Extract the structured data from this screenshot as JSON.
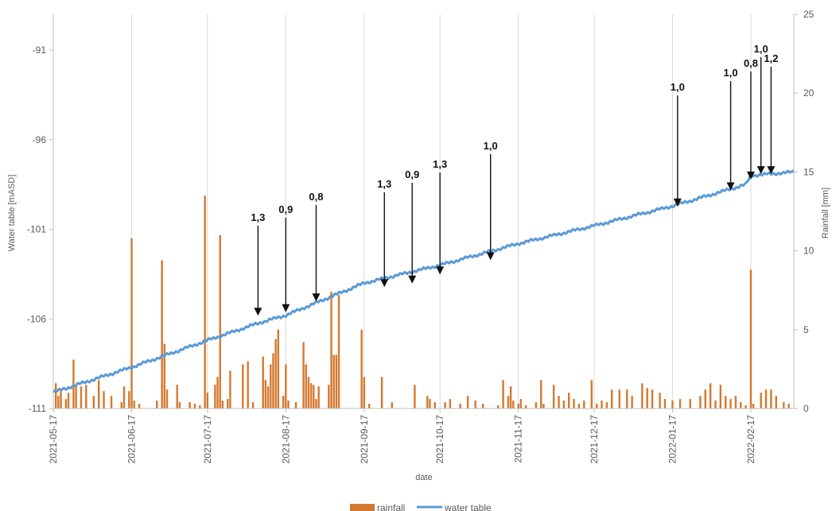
{
  "chart_data": {
    "type": "bar+line",
    "title": "",
    "xlabel": "date",
    "ylabel_left": "Water table [mASD]",
    "ylabel_right": "Rainfall [mm]",
    "x_start": "2021-05-17",
    "x_end": "2022-03-06",
    "x_ticks": [
      "2021-05-17",
      "2021-06-17",
      "2021-07-17",
      "2021-08-17",
      "2021-09-17",
      "2021-10-17",
      "2021-11-17",
      "2021-12-17",
      "2022-01-17",
      "2022-02-17"
    ],
    "ylim_left": [
      -111,
      -89
    ],
    "yticks_left": [
      -91,
      -96,
      -101,
      -106,
      -111
    ],
    "ylim_right": [
      0,
      25
    ],
    "yticks_right": [
      25,
      20,
      15,
      10,
      5,
      0
    ],
    "grid": "vertical",
    "legend_position": "bottom-center",
    "series": [
      {
        "name": "rainfall",
        "type": "bar",
        "axis": "right",
        "color": "#d4782f",
        "points": [
          [
            "2021-05-18",
            1.6
          ],
          [
            "2021-05-19",
            0.8
          ],
          [
            "2021-05-20",
            1.2
          ],
          [
            "2021-05-22",
            0.6
          ],
          [
            "2021-05-23",
            1.0
          ],
          [
            "2021-05-25",
            3.1
          ],
          [
            "2021-05-26",
            1.5
          ],
          [
            "2021-05-28",
            1.4
          ],
          [
            "2021-05-30",
            1.5
          ],
          [
            "2021-06-02",
            0.8
          ],
          [
            "2021-06-04",
            1.8
          ],
          [
            "2021-06-06",
            1.1
          ],
          [
            "2021-06-09",
            0.8
          ],
          [
            "2021-06-13",
            0.4
          ],
          [
            "2021-06-14",
            1.4
          ],
          [
            "2021-06-16",
            1.1
          ],
          [
            "2021-06-17",
            10.8
          ],
          [
            "2021-06-18",
            0.5
          ],
          [
            "2021-06-20",
            0.3
          ],
          [
            "2021-06-27",
            0.5
          ],
          [
            "2021-06-29",
            9.4
          ],
          [
            "2021-06-30",
            4.1
          ],
          [
            "2021-07-01",
            1.2
          ],
          [
            "2021-07-05",
            1.5
          ],
          [
            "2021-07-06",
            0.4
          ],
          [
            "2021-07-10",
            0.4
          ],
          [
            "2021-07-12",
            0.3
          ],
          [
            "2021-07-14",
            0.2
          ],
          [
            "2021-07-16",
            13.5
          ],
          [
            "2021-07-17",
            1.0
          ],
          [
            "2021-07-20",
            1.5
          ],
          [
            "2021-07-21",
            2.0
          ],
          [
            "2021-07-22",
            11.0
          ],
          [
            "2021-07-23",
            0.5
          ],
          [
            "2021-07-25",
            0.6
          ],
          [
            "2021-07-26",
            2.4
          ],
          [
            "2021-07-31",
            2.8
          ],
          [
            "2021-08-02",
            3.0
          ],
          [
            "2021-08-04",
            0.4
          ],
          [
            "2021-08-08",
            3.3
          ],
          [
            "2021-08-09",
            1.8
          ],
          [
            "2021-08-10",
            1.4
          ],
          [
            "2021-08-11",
            2.8
          ],
          [
            "2021-08-12",
            3.5
          ],
          [
            "2021-08-13",
            4.4
          ],
          [
            "2021-08-14",
            5.0
          ],
          [
            "2021-08-16",
            0.8
          ],
          [
            "2021-08-17",
            2.8
          ],
          [
            "2021-08-18",
            0.5
          ],
          [
            "2021-08-21",
            0.4
          ],
          [
            "2021-08-24",
            4.2
          ],
          [
            "2021-08-25",
            2.8
          ],
          [
            "2021-08-26",
            2.0
          ],
          [
            "2021-08-27",
            1.6
          ],
          [
            "2021-08-28",
            1.5
          ],
          [
            "2021-08-29",
            0.6
          ],
          [
            "2021-08-30",
            1.4
          ],
          [
            "2021-09-03",
            1.5
          ],
          [
            "2021-09-04",
            7.4
          ],
          [
            "2021-09-05",
            3.4
          ],
          [
            "2021-09-06",
            3.4
          ],
          [
            "2021-09-07",
            7.2
          ],
          [
            "2021-09-16",
            5.0
          ],
          [
            "2021-09-17",
            2.0
          ],
          [
            "2021-09-19",
            0.3
          ],
          [
            "2021-09-24",
            2.0
          ],
          [
            "2021-09-28",
            0.4
          ],
          [
            "2021-10-07",
            1.5
          ],
          [
            "2021-10-12",
            0.8
          ],
          [
            "2021-10-13",
            0.6
          ],
          [
            "2021-10-15",
            0.4
          ],
          [
            "2021-10-19",
            0.4
          ],
          [
            "2021-10-21",
            0.6
          ],
          [
            "2021-10-25",
            0.3
          ],
          [
            "2021-10-28",
            0.8
          ],
          [
            "2021-10-31",
            0.5
          ],
          [
            "2021-11-03",
            0.3
          ],
          [
            "2021-11-09",
            0.2
          ],
          [
            "2021-11-11",
            1.8
          ],
          [
            "2021-11-13",
            0.8
          ],
          [
            "2021-11-14",
            1.4
          ],
          [
            "2021-11-15",
            0.5
          ],
          [
            "2021-11-17",
            0.3
          ],
          [
            "2021-11-18",
            0.6
          ],
          [
            "2021-11-20",
            0.2
          ],
          [
            "2021-11-24",
            0.4
          ],
          [
            "2021-11-26",
            1.8
          ],
          [
            "2021-11-27",
            0.3
          ],
          [
            "2021-12-01",
            1.5
          ],
          [
            "2021-12-03",
            0.8
          ],
          [
            "2021-12-05",
            0.5
          ],
          [
            "2021-12-07",
            1.0
          ],
          [
            "2021-12-09",
            0.6
          ],
          [
            "2021-12-11",
            0.3
          ],
          [
            "2021-12-13",
            0.5
          ],
          [
            "2021-12-16",
            1.8
          ],
          [
            "2021-12-18",
            0.3
          ],
          [
            "2021-12-20",
            0.5
          ],
          [
            "2021-12-22",
            0.4
          ],
          [
            "2021-12-24",
            1.2
          ],
          [
            "2021-12-27",
            1.2
          ],
          [
            "2021-12-30",
            1.2
          ],
          [
            "2022-01-01",
            0.8
          ],
          [
            "2022-01-05",
            1.6
          ],
          [
            "2022-01-07",
            1.3
          ],
          [
            "2022-01-09",
            1.2
          ],
          [
            "2022-01-12",
            1.0
          ],
          [
            "2022-01-14",
            0.6
          ],
          [
            "2022-01-17",
            0.5
          ],
          [
            "2022-01-20",
            0.6
          ],
          [
            "2022-01-24",
            0.6
          ],
          [
            "2022-01-28",
            0.8
          ],
          [
            "2022-01-30",
            1.2
          ],
          [
            "2022-02-01",
            1.6
          ],
          [
            "2022-02-03",
            0.5
          ],
          [
            "2022-02-05",
            1.5
          ],
          [
            "2022-02-07",
            0.8
          ],
          [
            "2022-02-09",
            0.6
          ],
          [
            "2022-02-11",
            0.8
          ],
          [
            "2022-02-13",
            0.4
          ],
          [
            "2022-02-15",
            0.2
          ],
          [
            "2022-02-17",
            8.8
          ],
          [
            "2022-02-18",
            0.3
          ],
          [
            "2022-02-21",
            1.0
          ],
          [
            "2022-02-23",
            1.2
          ],
          [
            "2022-02-25",
            1.2
          ],
          [
            "2022-02-27",
            0.8
          ],
          [
            "2022-03-02",
            0.4
          ],
          [
            "2022-03-04",
            0.3
          ]
        ]
      },
      {
        "name": "water table",
        "type": "line",
        "axis": "left",
        "color": "#5b9bd5",
        "points": [
          [
            "2021-05-17",
            -110.1
          ],
          [
            "2021-06-17",
            -108.7
          ],
          [
            "2021-07-17",
            -107.2
          ],
          [
            "2021-08-07",
            -106.2
          ],
          [
            "2021-08-17",
            -105.8
          ],
          [
            "2021-09-17",
            -104.0
          ],
          [
            "2021-10-17",
            -103.0
          ],
          [
            "2021-11-17",
            -101.8
          ],
          [
            "2021-12-17",
            -100.8
          ],
          [
            "2022-01-17",
            -99.7
          ],
          [
            "2022-02-15",
            -98.5
          ],
          [
            "2022-02-17",
            -98.0
          ],
          [
            "2022-03-06",
            -97.8
          ]
        ]
      }
    ],
    "annotations": [
      {
        "date": "2021-08-06",
        "label": "1,3",
        "value": -106.0
      },
      {
        "date": "2021-08-17",
        "label": "0,9",
        "value": -105.8
      },
      {
        "date": "2021-08-29",
        "label": "0,8",
        "value": -105.2
      },
      {
        "date": "2021-09-25",
        "label": "1,3",
        "value": -104.4
      },
      {
        "date": "2021-10-06",
        "label": "0,9",
        "value": -104.2
      },
      {
        "date": "2021-10-17",
        "label": "1,3",
        "value": -103.7
      },
      {
        "date": "2021-11-06",
        "label": "1,0",
        "value": -102.9
      },
      {
        "date": "2022-01-19",
        "label": "1,0",
        "value": -99.9
      },
      {
        "date": "2022-02-09",
        "label": "1,0",
        "value": -99.0
      },
      {
        "date": "2022-02-17",
        "label": "0,8",
        "value": -98.4
      },
      {
        "date": "2022-02-21",
        "label": "1,0",
        "value": -98.1
      },
      {
        "date": "2022-02-25",
        "label": "1,2",
        "value": -98.1
      }
    ]
  }
}
